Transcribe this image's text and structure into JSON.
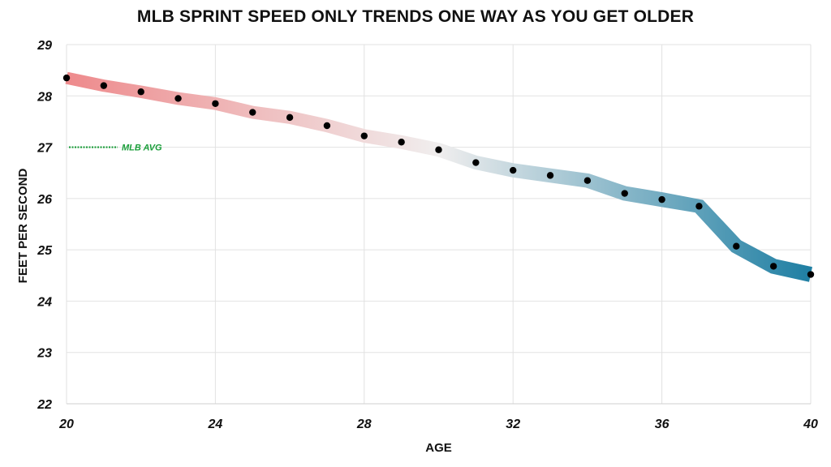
{
  "chart_data": {
    "type": "line",
    "title": "MLB SPRINT SPEED ONLY TRENDS ONE WAY AS YOU GET OLDER",
    "xlabel": "AGE",
    "ylabel": "FEET PER SECOND",
    "xlim": [
      20,
      40
    ],
    "ylim": [
      22,
      29
    ],
    "x_ticks": [
      "20",
      "24",
      "28",
      "32",
      "36",
      "40"
    ],
    "y_ticks": [
      "22",
      "23",
      "24",
      "25",
      "26",
      "27",
      "28",
      "29"
    ],
    "grid": true,
    "series": [
      {
        "x": [
          20,
          21,
          22,
          23,
          24,
          25,
          26,
          27,
          28,
          29,
          30,
          31,
          32,
          33,
          34,
          35,
          36,
          37,
          38,
          39,
          40
        ],
        "y": [
          28.35,
          28.2,
          28.08,
          27.95,
          27.85,
          27.68,
          27.58,
          27.42,
          27.22,
          27.1,
          26.95,
          26.7,
          26.55,
          26.45,
          26.35,
          26.1,
          25.98,
          25.85,
          25.07,
          24.68,
          24.52
        ]
      }
    ],
    "reference_line": {
      "label": "MLB AVG",
      "y": 27.0,
      "color": "#1a9e3a"
    },
    "gradient_colors": {
      "start": "#ee8a8c",
      "mid": "#f0eeee",
      "end": "#1f7fa3"
    },
    "marker_color": "#000000"
  }
}
